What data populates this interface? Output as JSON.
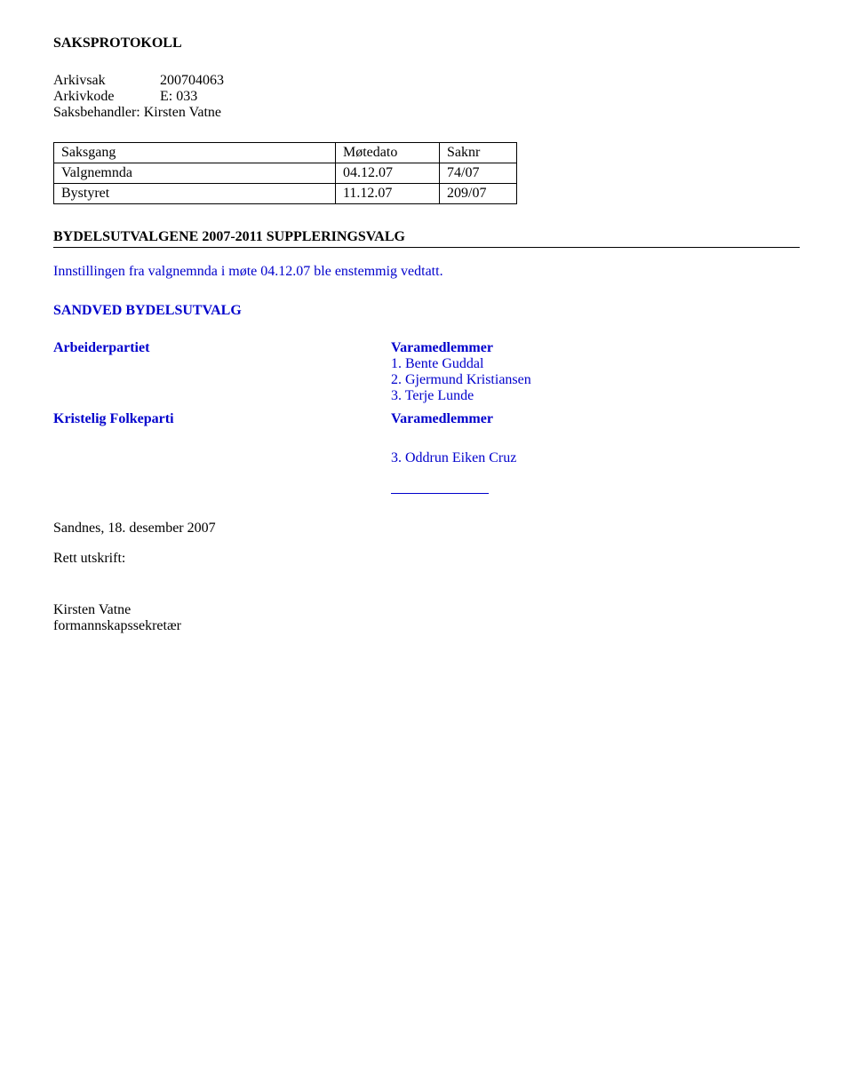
{
  "header": {
    "title": "SAKSPROTOKOLL",
    "arkivsak_label": "Arkivsak",
    "arkivsak_value": "200704063",
    "arkivkode_label": "Arkivkode",
    "arkivkode_value": "E: 033",
    "saksbehandler_label": "Saksbehandler:",
    "saksbehandler_value": "Kirsten Vatne"
  },
  "table": {
    "headers": {
      "saksgang": "Saksgang",
      "motedato": "Møtedato",
      "saknr": "Saknr"
    },
    "rows": [
      {
        "saksgang": "Valgnemnda",
        "motedato": "04.12.07",
        "saknr": "74/07"
      },
      {
        "saksgang": "Bystyret",
        "motedato": "11.12.07",
        "saknr": "209/07"
      }
    ]
  },
  "title2": "BYDELSUTVALGENE 2007-2011 SUPPLERINGSVALG",
  "innstilling": "Innstillingen fra valgnemnda i møte 04.12.07 ble enstemmig vedtatt.",
  "utvalg": {
    "name": "SANDVED BYDELSUTVALG",
    "parties": [
      {
        "name": "Arbeiderpartiet",
        "vara_label": "Varamedlemmer",
        "members": [
          "1. Bente Guddal",
          "2. Gjermund Kristiansen",
          "3. Terje Lunde"
        ]
      },
      {
        "name": "Kristelig Folkeparti",
        "vara_label": "Varamedlemmer",
        "members": [
          "3. Oddrun Eiken Cruz"
        ]
      }
    ]
  },
  "footer": {
    "place_date": "Sandnes, 18. desember 2007",
    "rett_utskrift": "Rett utskrift:",
    "name": "Kirsten Vatne",
    "role": "formannskapssekretær"
  }
}
